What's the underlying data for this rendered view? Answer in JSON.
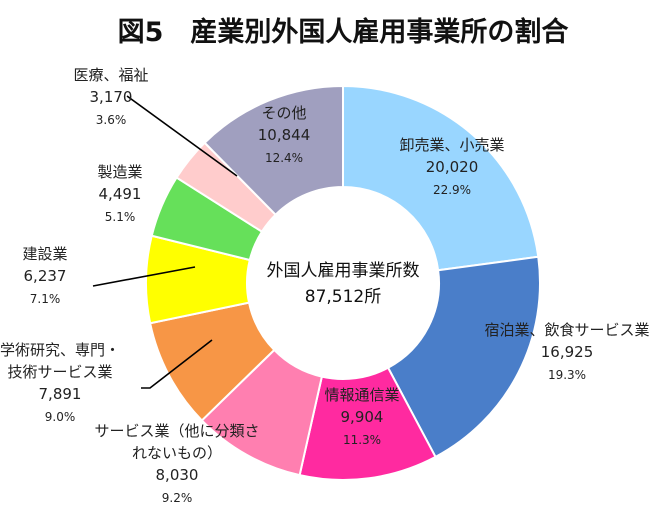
{
  "chart_data": {
    "type": "pie",
    "style": "donut",
    "title": "図5　産業別外国人雇用事業所の割合",
    "center_label": "外国人雇用事業所数",
    "center_value": "87,512所",
    "slices": [
      {
        "name": "卸売業、小売業",
        "value_text": "20,020",
        "pct_text": "22.9%",
        "value": 20020,
        "pct": 22.9,
        "color": "#99d6ff"
      },
      {
        "name": "宿泊業、飲食サービス業",
        "value_text": "16,925",
        "pct_text": "19.3%",
        "value": 16925,
        "pct": 19.3,
        "color": "#4a7ec9"
      },
      {
        "name": "情報通信業",
        "value_text": "9,904",
        "pct_text": "11.3%",
        "value": 9904,
        "pct": 11.3,
        "color": "#ff2aa0"
      },
      {
        "name": "サービス業（他に分類されないもの）",
        "value_text": "8,030",
        "pct_text": "9.2%",
        "value": 8030,
        "pct": 9.2,
        "color": "#ff7fb0"
      },
      {
        "name": "学術研究、専門・技術サービス業",
        "value_text": "7,891",
        "pct_text": "9.0%",
        "value": 7891,
        "pct": 9.0,
        "color": "#f79646"
      },
      {
        "name": "建設業",
        "value_text": "6,237",
        "pct_text": "7.1%",
        "value": 6237,
        "pct": 7.1,
        "color": "#ffff00"
      },
      {
        "name": "製造業",
        "value_text": "4,491",
        "pct_text": "5.1%",
        "value": 4491,
        "pct": 5.1,
        "color": "#66e05a"
      },
      {
        "name": "医療、福祉",
        "value_text": "3,170",
        "pct_text": "3.6%",
        "value": 3170,
        "pct": 3.6,
        "color": "#ffcccc"
      },
      {
        "name": "その他",
        "value_text": "10,844",
        "pct_text": "12.4%",
        "value": 10844,
        "pct": 12.4,
        "color": "#a09fbf"
      }
    ]
  }
}
